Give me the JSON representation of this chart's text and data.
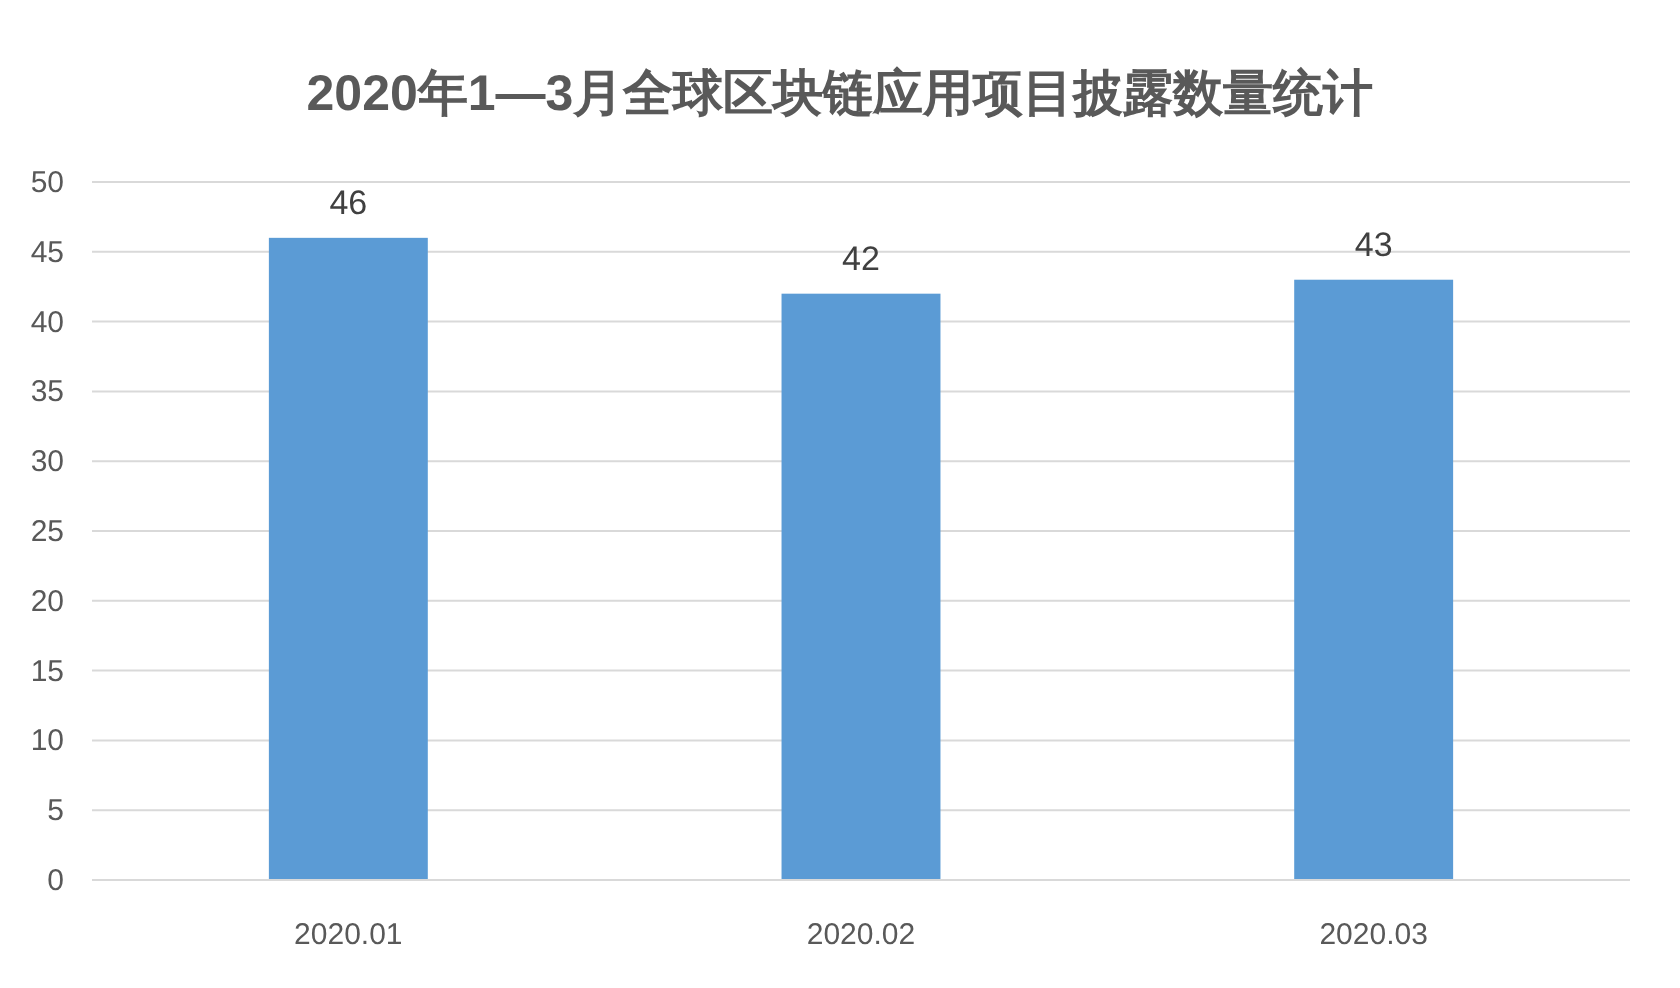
{
  "chart_data": {
    "type": "bar",
    "title": "2020年1—3月全球区块链应用项目披露数量统计",
    "categories": [
      "2020.01",
      "2020.02",
      "2020.03"
    ],
    "values": [
      46,
      42,
      43
    ],
    "color": "#5b9bd5",
    "ylim": [
      0,
      50
    ],
    "yticks": [
      0,
      5,
      10,
      15,
      20,
      25,
      30,
      35,
      40,
      45,
      50
    ],
    "grid": "y",
    "data_labels": true
  }
}
